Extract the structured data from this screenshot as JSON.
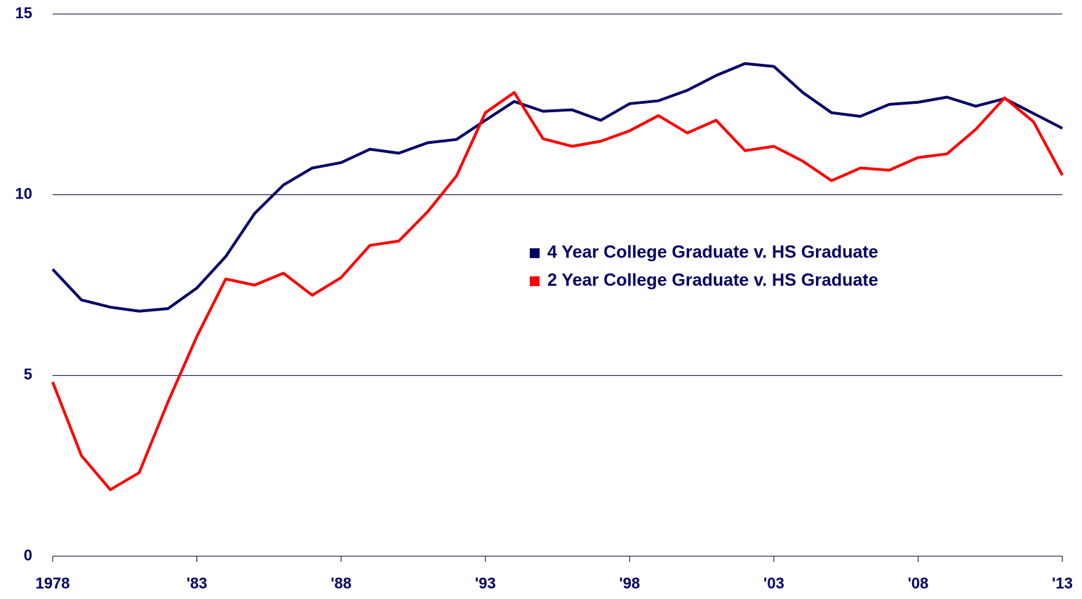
{
  "chart_data": {
    "type": "line",
    "x": [
      1978,
      1979,
      1980,
      1981,
      1982,
      1983,
      1984,
      1985,
      1986,
      1987,
      1988,
      1989,
      1990,
      1991,
      1992,
      1993,
      1994,
      1995,
      1996,
      1997,
      1998,
      1999,
      2000,
      2001,
      2002,
      2003,
      2004,
      2005,
      2006,
      2007,
      2008,
      2009,
      2010,
      2011,
      2012,
      2013
    ],
    "series": [
      {
        "name": "4 Year College Graduate v. HS Graduate",
        "color": "#000066",
        "values": [
          7.94,
          7.09,
          6.89,
          6.78,
          6.85,
          7.42,
          8.29,
          9.48,
          10.27,
          10.74,
          10.89,
          11.26,
          11.15,
          11.44,
          11.53,
          12.06,
          12.58,
          12.31,
          12.35,
          12.06,
          12.52,
          12.6,
          12.89,
          13.3,
          13.63,
          13.55,
          12.83,
          12.27,
          12.17,
          12.5,
          12.56,
          12.7,
          12.45,
          12.66,
          12.25,
          11.84
        ]
      },
      {
        "name": "2 Year College Graduate v. HS Graduate",
        "color": "#ff0000",
        "values": [
          4.82,
          2.78,
          1.84,
          2.31,
          4.27,
          6.08,
          7.67,
          7.5,
          7.83,
          7.22,
          7.71,
          8.6,
          8.72,
          9.53,
          10.52,
          12.27,
          12.83,
          11.55,
          11.34,
          11.48,
          11.77,
          12.19,
          11.71,
          12.06,
          11.22,
          11.34,
          10.93,
          10.39,
          10.74,
          10.68,
          11.03,
          11.13,
          11.81,
          12.68,
          12.02,
          10.54
        ]
      }
    ],
    "xlim": [
      1978,
      2013
    ],
    "xticks": [
      1978,
      {
        "value": 1983,
        "label": "'83"
      },
      {
        "value": 1988,
        "label": "'88"
      },
      {
        "value": 1993,
        "label": "'93"
      },
      {
        "value": 1998,
        "label": "'98"
      },
      {
        "value": 2003,
        "label": "'03"
      },
      {
        "value": 2008,
        "label": "'08"
      },
      {
        "value": 2013,
        "label": "'13"
      }
    ],
    "ylim": [
      0,
      15
    ],
    "yticks": [
      0,
      5,
      10,
      15
    ],
    "grid": true
  }
}
